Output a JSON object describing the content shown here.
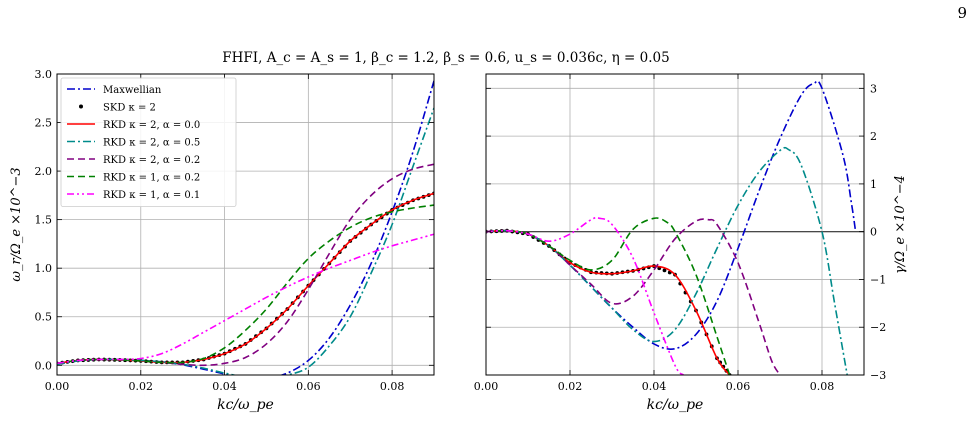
{
  "page_number": "9",
  "suptitle": "FHFI, A_c = A_s = 1, β_c = 1.2, β_s = 0.6, u_s = 0.036c, η = 0.05",
  "chart_data": [
    {
      "type": "line",
      "panel": "left",
      "xlabel": "kc/ω_pe",
      "ylabel": "ω_r/Ω_e ×10^−3",
      "xlim": [
        0,
        0.09
      ],
      "ylim": [
        -0.1,
        3.0
      ],
      "xticks": [
        "0.00",
        "0.02",
        "0.04",
        "0.06",
        "0.08"
      ],
      "yticks": [
        "0.0",
        "0.5",
        "1.0",
        "1.5",
        "2.0",
        "2.5",
        "3.0"
      ],
      "grid": true,
      "legend_position": "top-left",
      "series": [
        {
          "name": "Maxwellian",
          "color": "#0000cc",
          "style": "dashdot",
          "x": [
            0,
            0.005,
            0.01,
            0.015,
            0.02,
            0.025,
            0.03,
            0.035,
            0.04,
            0.045,
            0.048,
            0.05,
            0.055,
            0.06,
            0.065,
            0.07,
            0.075,
            0.08,
            0.085,
            0.09
          ],
          "y": [
            0.01,
            0.045,
            0.06,
            0.058,
            0.05,
            0.035,
            0.005,
            -0.04,
            -0.09,
            -0.14,
            -0.15,
            -0.14,
            -0.08,
            0.05,
            0.28,
            0.62,
            1.05,
            1.58,
            2.2,
            2.93
          ]
        },
        {
          "name": "SKD κ = 2",
          "color": "#000000",
          "style": "dots",
          "x": [
            0,
            0.005,
            0.01,
            0.015,
            0.02,
            0.025,
            0.03,
            0.035,
            0.04,
            0.045,
            0.05,
            0.055,
            0.06,
            0.065,
            0.07,
            0.075,
            0.08,
            0.085,
            0.09
          ],
          "y": [
            0.02,
            0.05,
            0.06,
            0.055,
            0.045,
            0.03,
            0.03,
            0.06,
            0.12,
            0.22,
            0.38,
            0.58,
            0.82,
            1.05,
            1.28,
            1.45,
            1.6,
            1.7,
            1.77
          ]
        },
        {
          "name": "RKD κ = 2, α = 0.0",
          "color": "#ff0000",
          "style": "solid",
          "x": [
            0,
            0.005,
            0.01,
            0.015,
            0.02,
            0.025,
            0.03,
            0.035,
            0.04,
            0.045,
            0.05,
            0.055,
            0.06,
            0.065,
            0.07,
            0.075,
            0.08,
            0.085,
            0.09
          ],
          "y": [
            0.02,
            0.05,
            0.06,
            0.055,
            0.045,
            0.03,
            0.03,
            0.06,
            0.12,
            0.22,
            0.38,
            0.58,
            0.82,
            1.05,
            1.28,
            1.45,
            1.6,
            1.7,
            1.77
          ]
        },
        {
          "name": "RKD κ = 2, α = 0.5",
          "color": "#008b8b",
          "style": "dashdot",
          "x": [
            0,
            0.005,
            0.01,
            0.015,
            0.02,
            0.025,
            0.03,
            0.035,
            0.04,
            0.045,
            0.05,
            0.055,
            0.06,
            0.065,
            0.07,
            0.075,
            0.08,
            0.085,
            0.09
          ],
          "y": [
            0.01,
            0.045,
            0.06,
            0.058,
            0.05,
            0.035,
            0.01,
            -0.03,
            -0.08,
            -0.12,
            -0.13,
            -0.1,
            -0.02,
            0.2,
            0.5,
            0.95,
            1.45,
            2.05,
            2.65
          ]
        },
        {
          "name": "RKD κ = 2, α = 0.2",
          "color": "#800080",
          "style": "dashed",
          "x": [
            0,
            0.005,
            0.01,
            0.015,
            0.02,
            0.025,
            0.03,
            0.035,
            0.04,
            0.045,
            0.05,
            0.055,
            0.06,
            0.065,
            0.07,
            0.075,
            0.08,
            0.085,
            0.09
          ],
          "y": [
            0.02,
            0.05,
            0.06,
            0.055,
            0.045,
            0.03,
            0.01,
            0.0,
            0.02,
            0.08,
            0.22,
            0.45,
            0.78,
            1.15,
            1.5,
            1.75,
            1.92,
            2.02,
            2.07
          ]
        },
        {
          "name": "RKD κ = 1, α = 0.2",
          "color": "#008000",
          "style": "dashed",
          "x": [
            0,
            0.005,
            0.01,
            0.015,
            0.02,
            0.025,
            0.03,
            0.035,
            0.04,
            0.045,
            0.05,
            0.055,
            0.06,
            0.065,
            0.07,
            0.075,
            0.08,
            0.085,
            0.09
          ],
          "y": [
            0.02,
            0.05,
            0.06,
            0.055,
            0.045,
            0.03,
            0.03,
            0.07,
            0.18,
            0.36,
            0.58,
            0.85,
            1.1,
            1.28,
            1.42,
            1.52,
            1.58,
            1.62,
            1.65
          ]
        },
        {
          "name": "RKD κ = 1, α = 0.1",
          "color": "#ff00ff",
          "style": "dashdotdot",
          "x": [
            0,
            0.005,
            0.01,
            0.015,
            0.02,
            0.025,
            0.03,
            0.035,
            0.04,
            0.045,
            0.05,
            0.055,
            0.06,
            0.065,
            0.07,
            0.075,
            0.08,
            0.085,
            0.09
          ],
          "y": [
            0.02,
            0.05,
            0.06,
            0.06,
            0.07,
            0.12,
            0.22,
            0.34,
            0.46,
            0.58,
            0.7,
            0.81,
            0.91,
            1.0,
            1.08,
            1.16,
            1.23,
            1.29,
            1.35
          ]
        }
      ]
    },
    {
      "type": "line",
      "panel": "right",
      "xlabel": "kc/ω_pe",
      "ylabel": "γ/Ω_e ×10^−4",
      "xlim": [
        0,
        0.09
      ],
      "ylim": [
        -3.0,
        3.3
      ],
      "xticks": [
        "0.00",
        "0.02",
        "0.04",
        "0.06",
        "0.08"
      ],
      "yticks": [
        "−3",
        "−2",
        "−1",
        "0",
        "1",
        "2",
        "3"
      ],
      "grid": true,
      "zero_line": true,
      "series": [
        {
          "name": "Maxwellian",
          "color": "#0000cc",
          "style": "dashdot",
          "x": [
            0,
            0.005,
            0.01,
            0.015,
            0.02,
            0.025,
            0.03,
            0.035,
            0.04,
            0.045,
            0.05,
            0.055,
            0.06,
            0.065,
            0.07,
            0.075,
            0.078,
            0.08,
            0.085,
            0.087,
            0.088
          ],
          "y": [
            0,
            0.02,
            -0.05,
            -0.3,
            -0.7,
            -1.15,
            -1.6,
            -2.0,
            -2.35,
            -2.45,
            -2.15,
            -1.45,
            -0.35,
            0.85,
            1.95,
            2.85,
            3.1,
            3.0,
            1.6,
            0.6,
            0.0
          ]
        },
        {
          "name": "SKD κ = 2",
          "color": "#000000",
          "style": "dots",
          "x": [
            0,
            0.005,
            0.01,
            0.015,
            0.02,
            0.025,
            0.03,
            0.035,
            0.04,
            0.045,
            0.05,
            0.055,
            0.058
          ],
          "y": [
            0,
            0.02,
            -0.05,
            -0.3,
            -0.65,
            -0.85,
            -0.88,
            -0.82,
            -0.72,
            -0.9,
            -1.65,
            -2.65,
            -3.0
          ]
        },
        {
          "name": "RKD κ = 2, α = 0.0",
          "color": "#ff0000",
          "style": "solid",
          "x": [
            0,
            0.005,
            0.01,
            0.015,
            0.02,
            0.025,
            0.03,
            0.035,
            0.04,
            0.045,
            0.05,
            0.055,
            0.058
          ],
          "y": [
            0,
            0.02,
            -0.05,
            -0.3,
            -0.65,
            -0.85,
            -0.88,
            -0.82,
            -0.72,
            -0.9,
            -1.65,
            -2.65,
            -3.0
          ]
        },
        {
          "name": "RKD κ = 2, α = 0.5",
          "color": "#008b8b",
          "style": "dashdot",
          "x": [
            0,
            0.005,
            0.01,
            0.015,
            0.02,
            0.025,
            0.03,
            0.035,
            0.04,
            0.045,
            0.05,
            0.055,
            0.06,
            0.065,
            0.07,
            0.072,
            0.075,
            0.08,
            0.083,
            0.086
          ],
          "y": [
            0,
            0.02,
            -0.05,
            -0.3,
            -0.7,
            -1.15,
            -1.6,
            -2.05,
            -2.3,
            -2.05,
            -1.3,
            -0.35,
            0.55,
            1.25,
            1.7,
            1.72,
            1.4,
            0.0,
            -1.5,
            -3.0
          ]
        },
        {
          "name": "RKD κ = 2, α = 0.2",
          "color": "#800080",
          "style": "dashed",
          "x": [
            0,
            0.005,
            0.01,
            0.015,
            0.02,
            0.025,
            0.03,
            0.035,
            0.04,
            0.045,
            0.05,
            0.053,
            0.055,
            0.06,
            0.065,
            0.068,
            0.07
          ],
          "y": [
            0,
            0.02,
            -0.05,
            -0.3,
            -0.7,
            -1.1,
            -1.5,
            -1.35,
            -0.8,
            -0.15,
            0.22,
            0.25,
            0.15,
            -0.65,
            -1.9,
            -2.7,
            -3.0
          ]
        },
        {
          "name": "RKD κ = 1, α = 0.2",
          "color": "#008000",
          "style": "dashed",
          "x": [
            0,
            0.005,
            0.01,
            0.015,
            0.02,
            0.025,
            0.03,
            0.035,
            0.04,
            0.043,
            0.045,
            0.05,
            0.055,
            0.058
          ],
          "y": [
            0,
            0.02,
            -0.05,
            -0.3,
            -0.6,
            -0.8,
            -0.6,
            0.05,
            0.28,
            0.2,
            0.0,
            -0.9,
            -2.2,
            -3.0
          ]
        },
        {
          "name": "RKD κ = 1, α = 0.1",
          "color": "#ff00ff",
          "style": "dashdotdot",
          "x": [
            0,
            0.005,
            0.01,
            0.015,
            0.02,
            0.025,
            0.027,
            0.03,
            0.035,
            0.04,
            0.045,
            0.047
          ],
          "y": [
            0,
            0.02,
            -0.05,
            -0.2,
            -0.05,
            0.25,
            0.28,
            0.15,
            -0.55,
            -1.7,
            -2.8,
            -3.0
          ]
        }
      ]
    }
  ]
}
